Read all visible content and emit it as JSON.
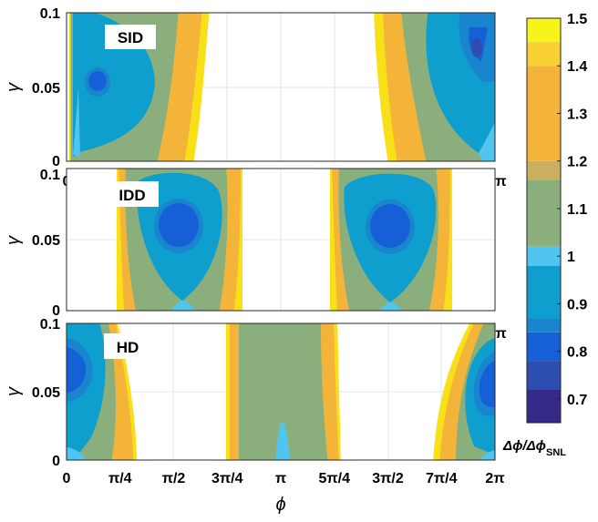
{
  "chart_data": {
    "type": "heatmap",
    "panels": [
      {
        "name": "panel-sid",
        "label": "SID",
        "ylabel": "γ"
      },
      {
        "name": "panel-idd",
        "label": "IDD",
        "ylabel": "γ"
      },
      {
        "name": "panel-hd",
        "label": "HD",
        "ylabel": "γ"
      }
    ],
    "xlim": [
      0,
      6.2832
    ],
    "ylim": [
      0,
      0.1
    ],
    "xticks": [
      {
        "value": 0,
        "label": "0"
      },
      {
        "value": 0.7854,
        "label": "π/4"
      },
      {
        "value": 1.5708,
        "label": "π/2"
      },
      {
        "value": 2.3562,
        "label": "3π/4"
      },
      {
        "value": 3.1416,
        "label": "π"
      },
      {
        "value": 3.927,
        "label": "5π/4"
      },
      {
        "value": 4.7124,
        "label": "3π/2"
      },
      {
        "value": 5.4978,
        "label": "7π/4"
      },
      {
        "value": 6.2832,
        "label": "2π"
      }
    ],
    "yticks": [
      {
        "value": 0,
        "label": "0"
      },
      {
        "value": 0.05,
        "label": "0.05"
      },
      {
        "value": 0.1,
        "label": "0.1"
      }
    ],
    "xlabel": "ϕ",
    "colorbar": {
      "ticks": [
        {
          "value": 0.7,
          "label": "0.7"
        },
        {
          "value": 0.8,
          "label": "0.8"
        },
        {
          "value": 0.9,
          "label": "0.9"
        },
        {
          "value": 1.0,
          "label": "1"
        },
        {
          "value": 1.1,
          "label": "1.1"
        },
        {
          "value": 1.2,
          "label": "1.2"
        },
        {
          "value": 1.3,
          "label": "1.3"
        },
        {
          "value": 1.4,
          "label": "1.4"
        },
        {
          "value": 1.5,
          "label": "1.5"
        }
      ],
      "range": [
        0.65,
        1.5
      ],
      "label_prefix": "Δϕ/Δϕ",
      "label_sub": "SNL",
      "levels": [
        {
          "lo": 0.65,
          "hi": 0.72,
          "color": "#352a87"
        },
        {
          "lo": 0.72,
          "hi": 0.78,
          "color": "#2d4db0"
        },
        {
          "lo": 0.78,
          "hi": 0.84,
          "color": "#1560d6"
        },
        {
          "lo": 0.84,
          "hi": 0.87,
          "color": "#1a85cf"
        },
        {
          "lo": 0.87,
          "hi": 0.98,
          "color": "#0e9fce"
        },
        {
          "lo": 0.98,
          "hi": 1.02,
          "color": "#4fc5ef"
        },
        {
          "lo": 1.02,
          "hi": 1.16,
          "color": "#8aaf7c"
        },
        {
          "lo": 1.16,
          "hi": 1.2,
          "color": "#c9b060"
        },
        {
          "lo": 1.2,
          "hi": 1.4,
          "color": "#f4b43a"
        },
        {
          "lo": 1.4,
          "hi": 1.45,
          "color": "#f8d034"
        },
        {
          "lo": 1.45,
          "hi": 1.5,
          "color": "#f7f41a"
        }
      ]
    }
  }
}
